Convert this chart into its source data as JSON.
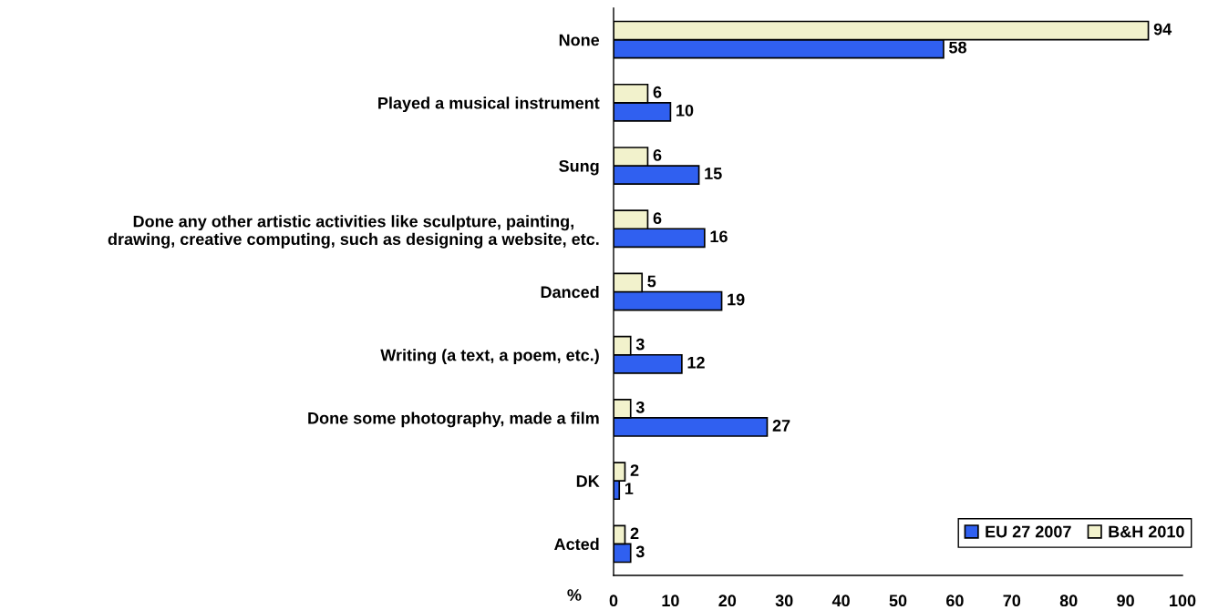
{
  "chart_data": {
    "type": "bar",
    "orientation": "horizontal",
    "categories": [
      "None",
      "Played a musical instrument",
      "Sung",
      "Done any other artistic activities like sculpture, painting,\ndrawing, creative computing, such as designing a website, etc.",
      "Danced",
      "Writing (a text, a poem, etc.)",
      "Done some photography, made a film",
      "DK",
      "Acted"
    ],
    "series": [
      {
        "name": "EU 27 2007",
        "color": "#3060f0",
        "values": [
          58,
          10,
          15,
          16,
          19,
          12,
          27,
          1,
          3
        ]
      },
      {
        "name": "B&H 2010",
        "color": "#f2f2cc",
        "values": [
          94,
          6,
          6,
          6,
          5,
          3,
          3,
          2,
          2
        ]
      }
    ],
    "xlabel": "%",
    "xlim": [
      0,
      100
    ],
    "xticks": [
      0,
      10,
      20,
      30,
      40,
      50,
      60,
      70,
      80,
      90,
      100
    ],
    "data_labels": true,
    "legend": "bottom right"
  }
}
